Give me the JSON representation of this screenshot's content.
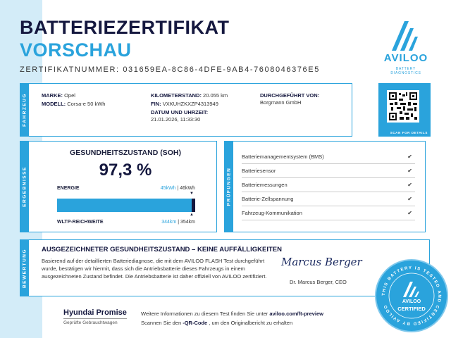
{
  "header": {
    "title": "BATTERIEZERTIFIKAT",
    "subtitle": "VORSCHAU",
    "cert_number": "ZERTIFIKATNUMMER: 031659EA-8C86-4DFE-9AB4-7608046376E5"
  },
  "brand": {
    "name": "AVILOO",
    "tagline": "BATTERY DIAGNOSTICS",
    "color": "#2aa3dc",
    "qr_label": "SCAN FOR DETAILS"
  },
  "vehicle": {
    "section": "FAHRZEUG",
    "marke_label": "MARKE:",
    "marke": "Opel",
    "modell_label": "MODELL:",
    "modell": "Corsa-e 50 kWh",
    "km_label": "KILOMETERSTAND:",
    "km": "20.055 km",
    "fin_label": "FIN:",
    "fin": "VXKUHZKXZP4313949",
    "datum_label": "DATUM UND UHRZEIT:",
    "datum": "21.01.2026, 11:33:30",
    "by_label": "DURCHGEFÜHRT VON:",
    "by": "Borgmann GmbH"
  },
  "results": {
    "section": "ERGEBNISSE",
    "soh_title": "GESUNDHEITSZUSTAND (SOH)",
    "soh_value": "97,3 %",
    "soh_percent": 97.3,
    "energy_label": "ENERGIE",
    "energy_current": "45kWh",
    "energy_sep": " | ",
    "energy_nominal": "46kWh",
    "range_label": "WLTP-REICHWEITE",
    "range_current": "344km",
    "range_nominal": "354km"
  },
  "checks": {
    "section": "PRÜFUNGEN",
    "items": [
      {
        "label": "Batteriemanagementsystem (BMS)",
        "status": "✔"
      },
      {
        "label": "Batteriesensor",
        "status": "✔"
      },
      {
        "label": "Batteriemessungen",
        "status": "✔"
      },
      {
        "label": "Batterie-Zellspannung",
        "status": "✔"
      },
      {
        "label": "Fahrzeug-Kommunikation",
        "status": "✔"
      }
    ]
  },
  "rating": {
    "section": "BEWERTUNG",
    "title": "AUSGEZEICHNETER GESUNDHEITSZUSTAND – KEINE AUFFÄLLIGKEITEN",
    "text": "Basierend auf der detaillierten Batteriediagnose, die mit dem AVILOO FLASH Test durchgeführt wurde, bestätigen wir hiermit, dass sich die Antriebsbatterie dieses Fahrzeugs in einem ausgezeichneten Zustand befindet. Die Antriebsbatterie ist daher offiziell von AVILOO zertifiziert.",
    "signature": "Marcus Berger",
    "signer": "Dr. Marcus Berger, CEO"
  },
  "seal": {
    "ring_text": "THIS BATTERY IS TESTED AND CERTIFIED BY AVILOO",
    "brand": "AVILOO",
    "label": "CERTIFIED"
  },
  "footer": {
    "partner": "Hyundai Promise",
    "partner_sub": "Geprüfte Gebrauchtwagen",
    "line1_prefix": "Weitere Informationen zu diesem Test finden Sie unter ",
    "line1_link": "aviloo.com/ft-preview",
    "line2_prefix": "Scannen Sie den ",
    "line2_bold": "-QR-Code",
    "line2_suffix": " , um den Originalbericht zu erhalten"
  }
}
